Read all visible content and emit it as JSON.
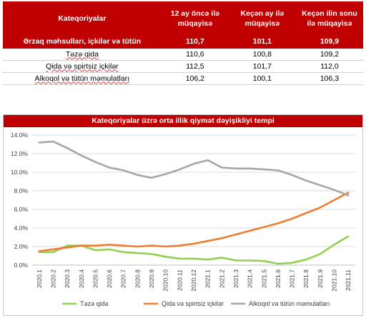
{
  "table": {
    "headers": [
      "Kateqoriyalar",
      "12 ay öncə ilə müqayisə",
      "Keçən ay ilə müqayisə",
      "Keçən ilin sonu ilə müqayisə"
    ],
    "rows": [
      {
        "label": "Ərzaq məhsulları, içkilər və tütün",
        "values": [
          "110,7",
          "101,1",
          "109,9"
        ]
      },
      {
        "label": "Təzə qida",
        "values": [
          "110,6",
          "100,8",
          "109,2"
        ]
      },
      {
        "label": "Qida və spirtsiz içkilər",
        "values": [
          "112,5",
          "101,7",
          "112,0"
        ]
      },
      {
        "label": "Alkoqol və tütün məmulatları",
        "values": [
          "106,2",
          "100,1",
          "106,3"
        ]
      }
    ]
  },
  "chart_data": {
    "type": "line",
    "title": "Kateqoriyalar üzrə orta illik qiymət dəyişikliyi tempi",
    "x": [
      "2020.1",
      "2020.2",
      "2020.3",
      "2020.4",
      "2020.5",
      "2020.6",
      "2020.7",
      "2020.8",
      "2020.9",
      "2020.10",
      "2020.11",
      "2020.12",
      "2021.1",
      "2021.2",
      "2021.3",
      "2021.4",
      "2021.5",
      "2021.6",
      "2021.7",
      "2021.8",
      "2021.9",
      "2021.10",
      "2021.11"
    ],
    "yticks": [
      "0.0%",
      "2.0%",
      "4.0%",
      "6.0%",
      "8.0%",
      "10.0%",
      "12.0%",
      "14.0%"
    ],
    "ylim": [
      0,
      14
    ],
    "grid": true,
    "legend_position": "bottom",
    "series": [
      {
        "name": "Təzə qida",
        "color": "#92d050",
        "values": [
          1.4,
          1.4,
          2.1,
          2.1,
          1.6,
          1.7,
          1.4,
          1.3,
          1.2,
          0.9,
          0.7,
          0.7,
          0.6,
          0.8,
          0.5,
          0.5,
          0.45,
          0.15,
          0.25,
          0.6,
          1.2,
          2.2,
          3.1
        ]
      },
      {
        "name": "Qida və spirtsiz içkilər",
        "color": "#ed7d31",
        "values": [
          1.5,
          1.7,
          1.9,
          2.1,
          2.1,
          2.2,
          2.1,
          2.0,
          2.1,
          2.0,
          2.1,
          2.3,
          2.6,
          2.9,
          3.3,
          3.7,
          4.1,
          4.5,
          5.0,
          5.6,
          6.2,
          7.0,
          7.8
        ]
      },
      {
        "name": "Alkoqol və tütün məmulatları",
        "color": "#a6a6a6",
        "values": [
          13.2,
          13.3,
          12.6,
          11.8,
          11.1,
          10.5,
          10.2,
          9.7,
          9.4,
          9.8,
          10.3,
          10.9,
          11.3,
          10.5,
          10.4,
          10.4,
          10.3,
          10.2,
          9.7,
          9.1,
          8.6,
          8.1,
          7.5
        ]
      }
    ]
  }
}
